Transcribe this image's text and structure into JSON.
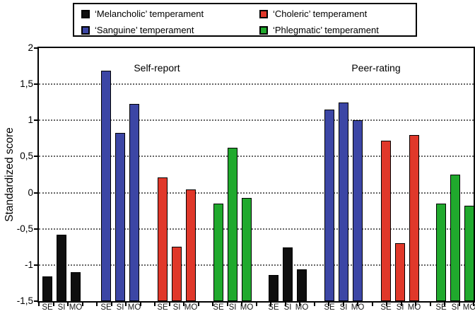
{
  "chart_data": {
    "type": "bar",
    "title": "",
    "ylabel": "Standardized score",
    "xlabel": "",
    "ylim": [
      -1.5,
      2
    ],
    "ytick_values": [
      2,
      1.5,
      1,
      0.5,
      0,
      -0.5,
      -1,
      -1.5
    ],
    "ytick_labels": [
      "2",
      "1,5",
      "1",
      "0,5",
      "0",
      "-0,5",
      "-1",
      "-1,5"
    ],
    "grid": "horizontal-dotted",
    "bar_baseline": -1.5,
    "legend_position": "top",
    "categories": [
      "SE",
      "SI",
      "MO"
    ],
    "sections": [
      {
        "label": "Self-report"
      },
      {
        "label": "Peer-rating"
      }
    ],
    "legend": [
      {
        "label": "‘Melancholic’ temperament",
        "color": "#0F0F0F"
      },
      {
        "label": "‘Choleric’ temperament",
        "color": "#E0382A"
      },
      {
        "label": "‘Sanguine’ temperament",
        "color": "#3C46A5"
      },
      {
        "label": "‘Phlegmatic’ temperament",
        "color": "#20A92D"
      }
    ],
    "series": [
      {
        "name": "‘Melancholic’ temperament",
        "color": "#0F0F0F",
        "self_report": [
          -1.16,
          -0.58,
          -1.1
        ],
        "peer_rating": [
          -1.14,
          -0.76,
          -1.06
        ]
      },
      {
        "name": "‘Sanguine’ temperament",
        "color": "#3C46A5",
        "self_report": [
          1.69,
          0.83,
          1.23
        ],
        "peer_rating": [
          1.15,
          1.25,
          1.0
        ]
      },
      {
        "name": "‘Choleric’ temperament",
        "color": "#E0382A",
        "self_report": [
          0.21,
          -0.75,
          0.04
        ],
        "peer_rating": [
          0.72,
          -0.7,
          0.8
        ]
      },
      {
        "name": "‘Phlegmatic’ temperament",
        "color": "#20A92D",
        "self_report": [
          -0.15,
          0.62,
          -0.07
        ],
        "peer_rating": [
          -0.15,
          0.25,
          -0.18
        ]
      }
    ]
  }
}
